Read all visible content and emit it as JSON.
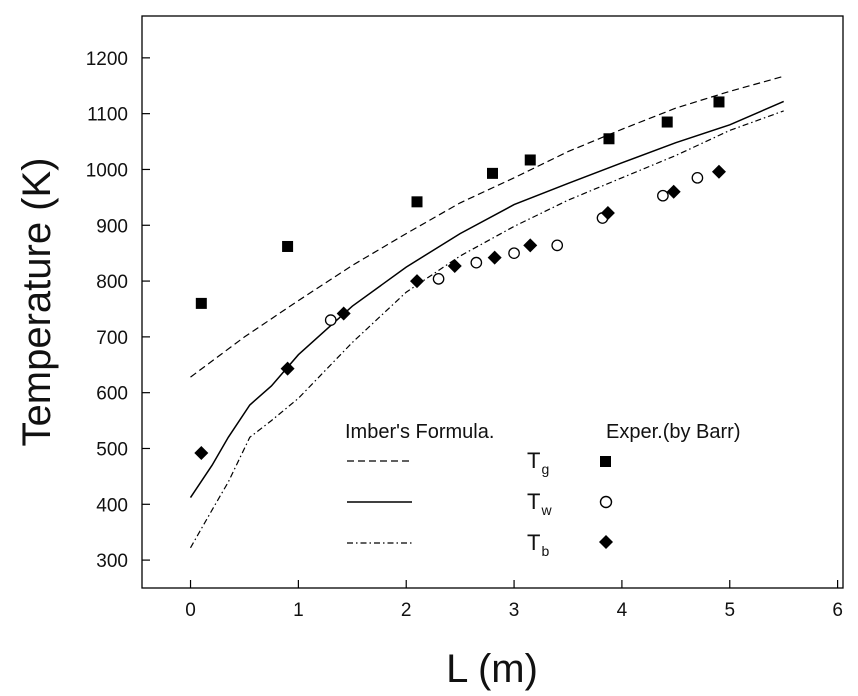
{
  "chart_data": {
    "type": "line",
    "xlabel": "L (m)",
    "ylabel": "Temperature (K)",
    "xlim": [
      -0.45,
      6.05
    ],
    "ylim": [
      250,
      1275
    ],
    "x_ticks": [
      0,
      1,
      2,
      3,
      4,
      5,
      6
    ],
    "y_ticks": [
      300,
      400,
      500,
      600,
      700,
      800,
      900,
      1000,
      1100,
      1200
    ],
    "grid": false,
    "legend": {
      "placement": "bottom-right",
      "model_header": "Imber's Formula.",
      "exp_header": "Exper.(by Barr)",
      "entries": [
        {
          "symbol": "T",
          "subscript": "g",
          "line": "dashed",
          "marker": "square"
        },
        {
          "symbol": "T",
          "subscript": "w",
          "line": "solid",
          "marker": "open-circle"
        },
        {
          "symbol": "T",
          "subscript": "b",
          "line": "dash-dot",
          "marker": "diamond"
        }
      ]
    },
    "lines": [
      {
        "key": "Tg",
        "style": "dashed",
        "x": [
          0,
          0.5,
          1,
          1.5,
          2,
          2.5,
          3,
          3.5,
          4,
          4.5,
          5,
          5.5
        ],
        "y": [
          628,
          700,
          765,
          828,
          885,
          940,
          985,
          1032,
          1072,
          1110,
          1140,
          1167
        ]
      },
      {
        "key": "Tw",
        "style": "solid",
        "x": [
          0,
          0.2,
          0.35,
          0.55,
          0.75,
          1,
          1.5,
          2,
          2.5,
          3,
          3.5,
          4,
          4.5,
          5,
          5.5
        ],
        "y": [
          412,
          470,
          520,
          578,
          612,
          668,
          755,
          825,
          885,
          937,
          975,
          1012,
          1048,
          1080,
          1122
        ]
      },
      {
        "key": "Tb",
        "style": "dash-dot",
        "x": [
          0,
          0.2,
          0.35,
          0.55,
          0.75,
          1,
          1.5,
          2,
          2.5,
          3,
          3.5,
          4,
          4.5,
          5,
          5.5
        ],
        "y": [
          322,
          390,
          440,
          520,
          550,
          590,
          690,
          780,
          845,
          898,
          945,
          985,
          1025,
          1070,
          1105
        ]
      }
    ],
    "points": [
      {
        "key": "Tg",
        "marker": "square",
        "x": [
          0.1,
          0.9,
          2.1,
          2.8,
          3.15,
          3.88,
          4.42,
          4.9
        ],
        "y": [
          760,
          862,
          942,
          993,
          1017,
          1055,
          1085,
          1121
        ]
      },
      {
        "key": "Tw",
        "marker": "open-circle",
        "x": [
          1.3,
          2.3,
          2.65,
          3.0,
          3.4,
          3.82,
          4.38,
          4.7
        ],
        "y": [
          730,
          804,
          833,
          850,
          864,
          913,
          953,
          985
        ]
      },
      {
        "key": "Tb",
        "marker": "diamond",
        "x": [
          0.1,
          0.9,
          1.42,
          2.1,
          2.45,
          2.82,
          3.15,
          3.87,
          4.48,
          4.9
        ],
        "y": [
          492,
          643,
          742,
          800,
          827,
          842,
          864,
          922,
          960,
          996
        ]
      }
    ]
  }
}
